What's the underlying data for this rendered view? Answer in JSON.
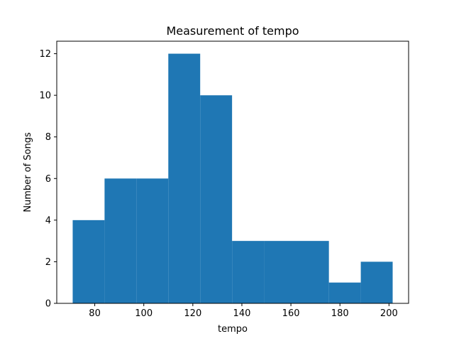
{
  "chart_data": {
    "type": "bar",
    "title": "Measurement of tempo",
    "xlabel": "tempo",
    "ylabel": "Number of Songs",
    "bins": [
      {
        "start": 71.0,
        "end": 84.0,
        "count": 4
      },
      {
        "start": 84.0,
        "end": 97.0,
        "count": 6
      },
      {
        "start": 97.0,
        "end": 110.0,
        "count": 6
      },
      {
        "start": 110.0,
        "end": 123.0,
        "count": 12
      },
      {
        "start": 123.0,
        "end": 136.0,
        "count": 10
      },
      {
        "start": 136.0,
        "end": 149.0,
        "count": 3
      },
      {
        "start": 149.0,
        "end": 162.0,
        "count": 3
      },
      {
        "start": 162.0,
        "end": 175.5,
        "count": 3
      },
      {
        "start": 175.5,
        "end": 188.5,
        "count": 1
      },
      {
        "start": 188.5,
        "end": 201.5,
        "count": 2
      }
    ],
    "xlim": [
      64.5,
      208.0
    ],
    "ylim": [
      0,
      12.6
    ],
    "xticks": [
      80,
      100,
      120,
      140,
      160,
      180,
      200
    ],
    "yticks": [
      0,
      2,
      4,
      6,
      8,
      10,
      12
    ],
    "grid": false,
    "bar_color": "#1f77b4"
  }
}
